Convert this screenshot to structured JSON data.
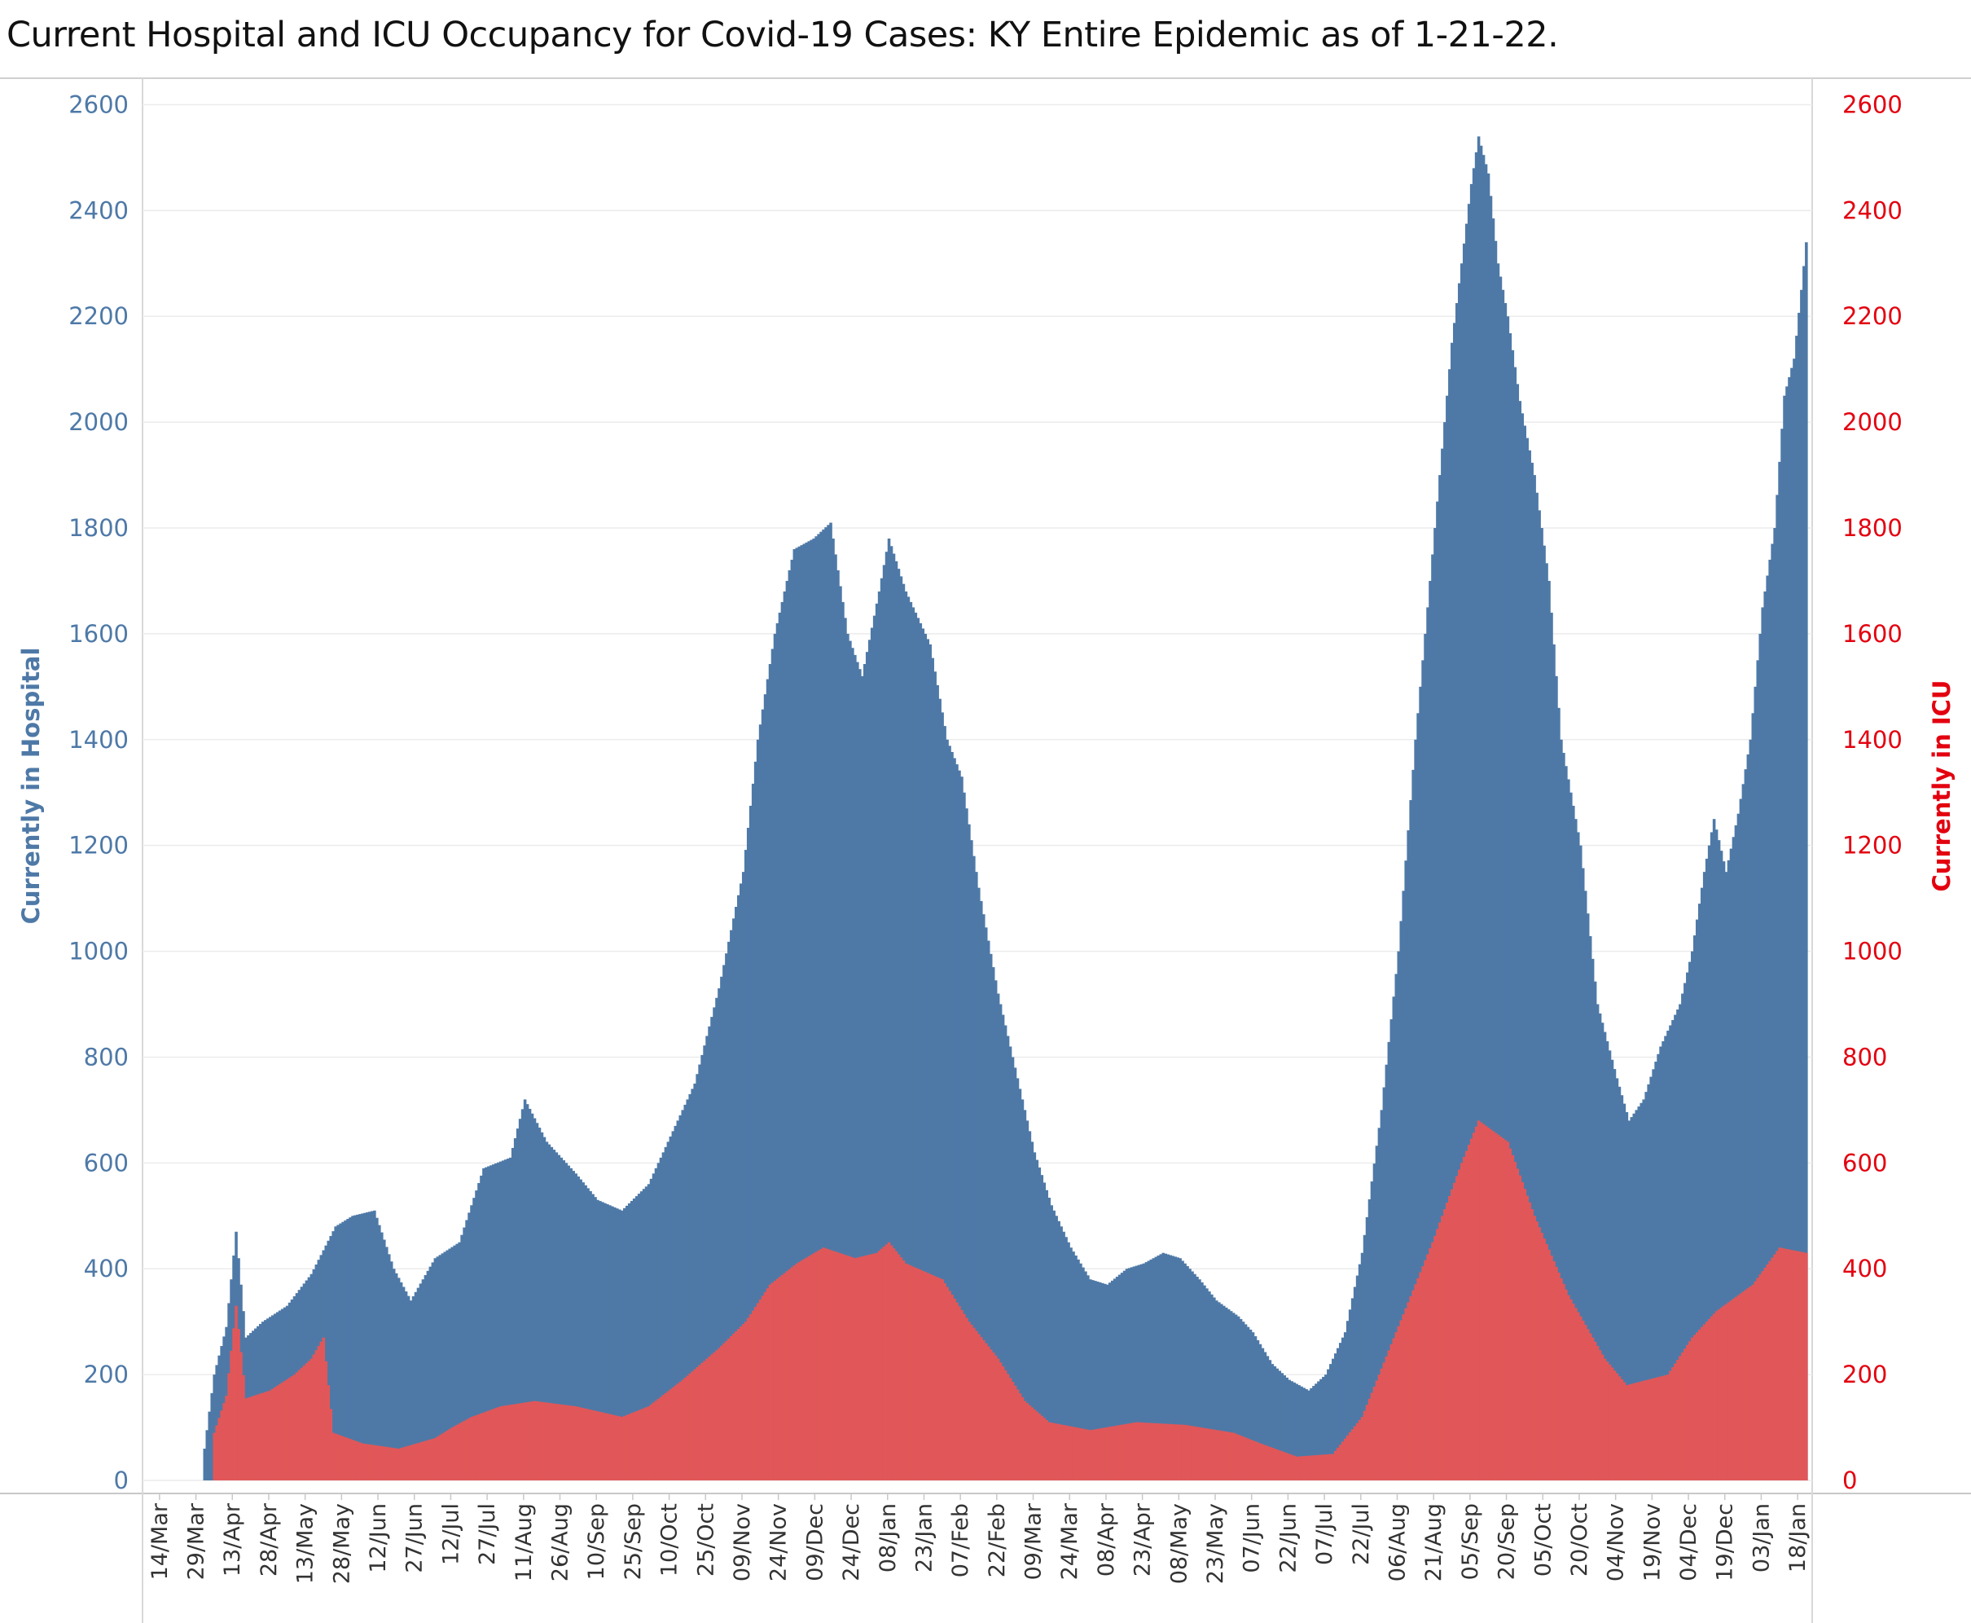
{
  "chart_data": {
    "type": "bar",
    "title": "Current Hospital and ICU Occupancy for Covid-19 Cases:  KY Entire Epidemic as of 1-21-22.",
    "y_left_label": "Currently in Hospital",
    "y_right_label": "Currently in ICU",
    "y_ticks": [
      0,
      200,
      400,
      600,
      800,
      1000,
      1200,
      1400,
      1600,
      1800,
      2000,
      2200,
      2400,
      2600
    ],
    "ylim": [
      0,
      2650
    ],
    "x_range": [
      "2020-03-07",
      "2022-01-24"
    ],
    "x_ticks": [
      "14/Mar",
      "29/Mar",
      "13/Apr",
      "28/Apr",
      "13/May",
      "28/May",
      "12/Jun",
      "27/Jun",
      "12/Jul",
      "27/Jul",
      "11/Aug",
      "26/Aug",
      "10/Sep",
      "25/Sep",
      "10/Oct",
      "25/Oct",
      "09/Nov",
      "24/Nov",
      "09/Dec",
      "24/Dec",
      "08/Jan",
      "23/Jan",
      "07/Feb",
      "22/Feb",
      "09/Mar",
      "24/Mar",
      "08/Apr",
      "23/Apr",
      "08/May",
      "23/May",
      "07/Jun",
      "22/Jun",
      "07/Jul",
      "22/Jul",
      "06/Aug",
      "21/Aug",
      "05/Sep",
      "20/Sep",
      "05/Oct",
      "20/Oct",
      "04/Nov",
      "19/Nov",
      "04/Dec",
      "19/Dec",
      "03/Jan",
      "18/Jan"
    ],
    "grid": true,
    "legend": "none",
    "colors": {
      "hospital": "#4e79a7",
      "icu": "#e15759",
      "left_axis": "#4e79a7",
      "right_axis": "#e3000f"
    },
    "series": [
      {
        "name": "Currently in Hospital",
        "points": [
          [
            "2020-04-01",
            60
          ],
          [
            "2020-04-05",
            200
          ],
          [
            "2020-04-10",
            290
          ],
          [
            "2020-04-14",
            470
          ],
          [
            "2020-04-18",
            270
          ],
          [
            "2020-04-25",
            300
          ],
          [
            "2020-05-05",
            330
          ],
          [
            "2020-05-15",
            390
          ],
          [
            "2020-05-25",
            480
          ],
          [
            "2020-06-01",
            500
          ],
          [
            "2020-06-10",
            510
          ],
          [
            "2020-06-18",
            400
          ],
          [
            "2020-06-25",
            340
          ],
          [
            "2020-07-05",
            420
          ],
          [
            "2020-07-15",
            450
          ],
          [
            "2020-07-25",
            590
          ],
          [
            "2020-08-05",
            610
          ],
          [
            "2020-08-11",
            720
          ],
          [
            "2020-08-20",
            640
          ],
          [
            "2020-09-01",
            580
          ],
          [
            "2020-09-10",
            530
          ],
          [
            "2020-09-20",
            510
          ],
          [
            "2020-10-01",
            560
          ],
          [
            "2020-10-10",
            650
          ],
          [
            "2020-10-20",
            750
          ],
          [
            "2020-10-30",
            930
          ],
          [
            "2020-11-09",
            1150
          ],
          [
            "2020-11-15",
            1400
          ],
          [
            "2020-11-22",
            1600
          ],
          [
            "2020-11-30",
            1760
          ],
          [
            "2020-12-08",
            1780
          ],
          [
            "2020-12-15",
            1810
          ],
          [
            "2020-12-22",
            1600
          ],
          [
            "2020-12-28",
            1520
          ],
          [
            "2021-01-04",
            1680
          ],
          [
            "2021-01-08",
            1780
          ],
          [
            "2021-01-15",
            1680
          ],
          [
            "2021-01-25",
            1580
          ],
          [
            "2021-02-01",
            1400
          ],
          [
            "2021-02-07",
            1330
          ],
          [
            "2021-02-14",
            1120
          ],
          [
            "2021-02-22",
            920
          ],
          [
            "2021-03-01",
            780
          ],
          [
            "2021-03-09",
            620
          ],
          [
            "2021-03-16",
            520
          ],
          [
            "2021-03-24",
            440
          ],
          [
            "2021-04-01",
            380
          ],
          [
            "2021-04-08",
            370
          ],
          [
            "2021-04-16",
            400
          ],
          [
            "2021-04-23",
            410
          ],
          [
            "2021-05-01",
            430
          ],
          [
            "2021-05-08",
            420
          ],
          [
            "2021-05-16",
            380
          ],
          [
            "2021-05-23",
            340
          ],
          [
            "2021-06-01",
            310
          ],
          [
            "2021-06-07",
            280
          ],
          [
            "2021-06-15",
            220
          ],
          [
            "2021-06-22",
            190
          ],
          [
            "2021-06-30",
            170
          ],
          [
            "2021-07-07",
            200
          ],
          [
            "2021-07-15",
            280
          ],
          [
            "2021-07-22",
            430
          ],
          [
            "2021-07-30",
            700
          ],
          [
            "2021-08-06",
            1000
          ],
          [
            "2021-08-13",
            1400
          ],
          [
            "2021-08-21",
            1800
          ],
          [
            "2021-08-28",
            2150
          ],
          [
            "2021-09-01",
            2300
          ],
          [
            "2021-09-05",
            2450
          ],
          [
            "2021-09-08",
            2540
          ],
          [
            "2021-09-12",
            2470
          ],
          [
            "2021-09-16",
            2300
          ],
          [
            "2021-09-20",
            2200
          ],
          [
            "2021-09-25",
            2040
          ],
          [
            "2021-10-01",
            1900
          ],
          [
            "2021-10-07",
            1700
          ],
          [
            "2021-10-12",
            1400
          ],
          [
            "2021-10-20",
            1200
          ],
          [
            "2021-10-27",
            900
          ],
          [
            "2021-11-04",
            760
          ],
          [
            "2021-11-09",
            680
          ],
          [
            "2021-11-15",
            720
          ],
          [
            "2021-11-22",
            820
          ],
          [
            "2021-11-30",
            900
          ],
          [
            "2021-12-05",
            1000
          ],
          [
            "2021-12-10",
            1150
          ],
          [
            "2021-12-14",
            1250
          ],
          [
            "2021-12-19",
            1150
          ],
          [
            "2021-12-24",
            1260
          ],
          [
            "2021-12-29",
            1400
          ],
          [
            "2022-01-03",
            1650
          ],
          [
            "2022-01-08",
            1800
          ],
          [
            "2022-01-12",
            2050
          ],
          [
            "2022-01-16",
            2120
          ],
          [
            "2022-01-19",
            2250
          ],
          [
            "2022-01-21",
            2340
          ]
        ]
      },
      {
        "name": "Currently in ICU",
        "points": [
          [
            "2020-04-05",
            90
          ],
          [
            "2020-04-10",
            160
          ],
          [
            "2020-04-14",
            330
          ],
          [
            "2020-04-18",
            155
          ],
          [
            "2020-04-28",
            170
          ],
          [
            "2020-05-08",
            200
          ],
          [
            "2020-05-15",
            230
          ],
          [
            "2020-05-20",
            270
          ],
          [
            "2020-05-24",
            90
          ],
          [
            "2020-06-05",
            70
          ],
          [
            "2020-06-20",
            60
          ],
          [
            "2020-07-05",
            80
          ],
          [
            "2020-07-12",
            100
          ],
          [
            "2020-07-20",
            120
          ],
          [
            "2020-08-01",
            140
          ],
          [
            "2020-08-15",
            150
          ],
          [
            "2020-09-01",
            140
          ],
          [
            "2020-09-20",
            120
          ],
          [
            "2020-10-01",
            140
          ],
          [
            "2020-10-15",
            190
          ],
          [
            "2020-10-30",
            250
          ],
          [
            "2020-11-10",
            300
          ],
          [
            "2020-11-20",
            370
          ],
          [
            "2020-12-01",
            410
          ],
          [
            "2020-12-12",
            440
          ],
          [
            "2020-12-25",
            420
          ],
          [
            "2021-01-03",
            430
          ],
          [
            "2021-01-08",
            450
          ],
          [
            "2021-01-15",
            410
          ],
          [
            "2021-01-30",
            380
          ],
          [
            "2021-02-10",
            300
          ],
          [
            "2021-02-22",
            230
          ],
          [
            "2021-03-05",
            150
          ],
          [
            "2021-03-15",
            110
          ],
          [
            "2021-04-01",
            95
          ],
          [
            "2021-04-20",
            110
          ],
          [
            "2021-05-10",
            105
          ],
          [
            "2021-05-30",
            90
          ],
          [
            "2021-06-10",
            70
          ],
          [
            "2021-06-25",
            45
          ],
          [
            "2021-07-10",
            50
          ],
          [
            "2021-07-22",
            120
          ],
          [
            "2021-08-05",
            280
          ],
          [
            "2021-08-20",
            450
          ],
          [
            "2021-09-01",
            600
          ],
          [
            "2021-09-08",
            680
          ],
          [
            "2021-09-20",
            640
          ],
          [
            "2021-10-01",
            500
          ],
          [
            "2021-10-15",
            350
          ],
          [
            "2021-10-30",
            230
          ],
          [
            "2021-11-08",
            180
          ],
          [
            "2021-11-25",
            200
          ],
          [
            "2021-12-05",
            270
          ],
          [
            "2021-12-15",
            320
          ],
          [
            "2021-12-30",
            370
          ],
          [
            "2022-01-10",
            440
          ],
          [
            "2022-01-21",
            430
          ]
        ]
      }
    ]
  }
}
